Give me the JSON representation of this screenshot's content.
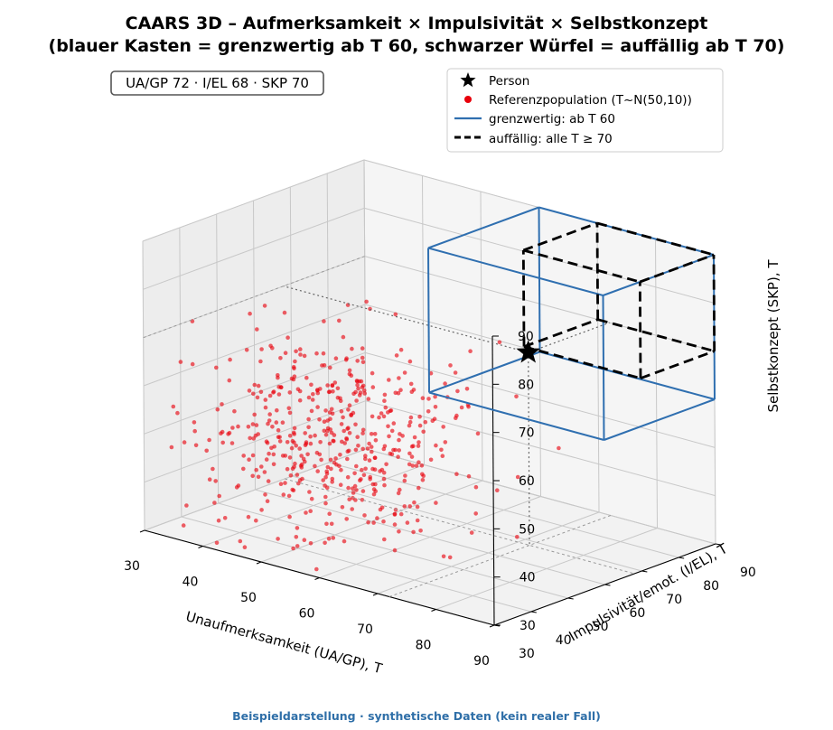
{
  "chart_data": {
    "type": "scatter",
    "title_line1": "CAARS 3D – Aufmerksamkeit × Impulsivität × Selbstkonzept",
    "title_line2": "(blauer Kasten = grenzwertig ab T 60, schwarzer Würfel = auffällig ab T 70)",
    "xlabel": "Unaufmerksamkeit (UA/GP), T",
    "ylabel": "Impulsivität/emot. (I/EL), T",
    "zlabel": "Selbstkonzept (SKP), T",
    "xlim": [
      30,
      90
    ],
    "ylim": [
      30,
      90
    ],
    "zlim": [
      30,
      90
    ],
    "xticks": [
      "30",
      "40",
      "50",
      "60",
      "70",
      "80",
      "90"
    ],
    "yticks": [
      "30",
      "40",
      "50",
      "60",
      "70",
      "80",
      "90"
    ],
    "zticks": [
      "30",
      "40",
      "50",
      "60",
      "70",
      "80",
      "90"
    ],
    "grid": true,
    "annotation": "UA/GP 72 · I/EL 68 · SKP 70",
    "legend_position": "top-right",
    "legend": [
      {
        "label": "Person",
        "marker": "star",
        "color": "#000000"
      },
      {
        "label": "Referenzpopulation (T~N(50,10))",
        "marker": "dot",
        "color": "#e8000b"
      },
      {
        "label": "grenzwertig: ab T 60",
        "marker": "line",
        "color": "#2f6fb0"
      },
      {
        "label": "auffällig: alle T ≥ 70",
        "marker": "dashed",
        "color": "#000000"
      }
    ],
    "person": {
      "x": 72,
      "y": 68,
      "z": 70
    },
    "borderline_box": {
      "from": 60,
      "to": 90
    },
    "clinical_box": {
      "from": 70,
      "to": 90
    },
    "population": {
      "n": 500,
      "mean": 50,
      "sd": 10
    }
  },
  "footer": "Beispieldarstellung · synthetische Daten (kein realer Fall)"
}
